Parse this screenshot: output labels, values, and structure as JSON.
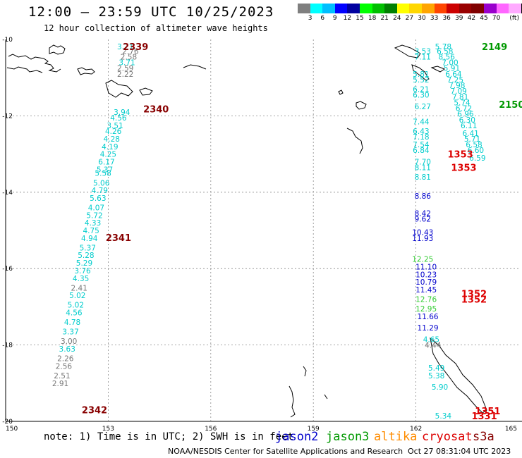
{
  "title": "12:00 – 23:59 UTC 10/25/2023",
  "subtitle": "12 hour collection of altimeter wave heights",
  "note": "note: 1) Time is in UTC; 2) SWH is in feet",
  "credit": "NOAA/NESDIS Center for Satellite Applications and Research",
  "timestamp": "Oct 27 08:31:04 UTC 2023",
  "colorbar": {
    "colors": [
      "#7f7f7f",
      "#00ffff",
      "#00bfff",
      "#0000ff",
      "#0000a0",
      "#00ff00",
      "#00c000",
      "#008000",
      "#ffff00",
      "#ffd700",
      "#ffa500",
      "#ff4500",
      "#cc0000",
      "#990000",
      "#800000",
      "#9900cc",
      "#ff66ff",
      "#ffaaff",
      "#000000"
    ],
    "labels": [
      "3",
      "6",
      "9",
      "12",
      "15",
      "18",
      "21",
      "24",
      "27",
      "30",
      "33",
      "36",
      "39",
      "42",
      "45",
      "70",
      "(ft)"
    ]
  },
  "satellites": [
    {
      "name": "jason2",
      "color": "#0000cc"
    },
    {
      "name": "jason3",
      "color": "#009900"
    },
    {
      "name": "altika",
      "color": "#ff8c00"
    },
    {
      "name": "cryosat",
      "color": "#dd0000"
    },
    {
      "name": "s3a",
      "color": "#880000"
    }
  ],
  "axes": {
    "x_ticks": [
      "150",
      "153",
      "156",
      "159",
      "162",
      "165"
    ],
    "y_ticks": [
      "-10",
      "-12",
      "-14",
      "-16",
      "-18",
      "-20"
    ],
    "lon_range": [
      150,
      165
    ],
    "lat_range": [
      -20,
      -10
    ]
  },
  "tracks": [
    {
      "pass_label": "2339",
      "label_color": "#880000",
      "label_lon": 153.8,
      "label_lat": -10.18
    },
    {
      "pass_label": "2340",
      "label_color": "#880000",
      "label_lon": 154.4,
      "label_lat": -11.82
    },
    {
      "pass_label": "2341",
      "label_color": "#880000",
      "label_lon": 153.3,
      "label_lat": -15.18
    },
    {
      "pass_label": "2342",
      "label_color": "#880000",
      "label_lon": 152.6,
      "label_lat": -19.7
    },
    {
      "pass_label": "2149",
      "label_color": "#009900",
      "label_lon": 164.3,
      "label_lat": -10.18
    },
    {
      "pass_label": "2150",
      "label_color": "#009900",
      "label_lon": 164.8,
      "label_lat": -11.7
    },
    {
      "pass_label": "1353",
      "label_color": "#dd0000",
      "label_lon": 163.3,
      "label_lat": -13.0
    },
    {
      "pass_label": "1353",
      "label_color": "#dd0000",
      "label_lon": 163.4,
      "label_lat": -13.35
    },
    {
      "pass_label": "1352",
      "label_color": "#dd0000",
      "label_lon": 163.7,
      "label_lat": -16.65
    },
    {
      "pass_label": "1352",
      "label_color": "#dd0000",
      "label_lon": 163.7,
      "label_lat": -16.8
    },
    {
      "pass_label": "1351",
      "label_color": "#dd0000",
      "label_lon": 164.1,
      "label_lat": -19.72
    },
    {
      "pass_label": "1331",
      "label_color": "#dd0000",
      "label_lon": 164.0,
      "label_lat": -19.85
    }
  ],
  "wave_heights": [
    {
      "v": "3.21",
      "c": "#00cccc",
      "lon": 153.5,
      "lat": -10.18
    },
    {
      "v": "2.76",
      "c": "#777777",
      "lon": 153.65,
      "lat": -10.3
    },
    {
      "v": "2.58",
      "c": "#777777",
      "lon": 153.6,
      "lat": -10.45
    },
    {
      "v": "3.71",
      "c": "#00cccc",
      "lon": 153.55,
      "lat": -10.6
    },
    {
      "v": "2.59",
      "c": "#777777",
      "lon": 153.5,
      "lat": -10.75
    },
    {
      "v": "2.22",
      "c": "#777777",
      "lon": 153.5,
      "lat": -10.9
    },
    {
      "v": "3.94",
      "c": "#00cccc",
      "lon": 153.4,
      "lat": -11.9
    },
    {
      "v": "4.56",
      "c": "#00cccc",
      "lon": 153.3,
      "lat": -12.05
    },
    {
      "v": "3.51",
      "c": "#00cccc",
      "lon": 153.2,
      "lat": -12.25
    },
    {
      "v": "4.26",
      "c": "#00cccc",
      "lon": 153.15,
      "lat": -12.4
    },
    {
      "v": "4.28",
      "c": "#00cccc",
      "lon": 153.1,
      "lat": -12.6
    },
    {
      "v": "4.19",
      "c": "#00cccc",
      "lon": 153.05,
      "lat": -12.8
    },
    {
      "v": "4.25",
      "c": "#00cccc",
      "lon": 153.0,
      "lat": -13.0
    },
    {
      "v": "6.17",
      "c": "#00cccc",
      "lon": 152.95,
      "lat": -13.2
    },
    {
      "v": "5.37",
      "c": "#00cccc",
      "lon": 152.9,
      "lat": -13.4
    },
    {
      "v": "5.58",
      "c": "#00cccc",
      "lon": 152.85,
      "lat": -13.5
    },
    {
      "v": "5.06",
      "c": "#00cccc",
      "lon": 152.8,
      "lat": -13.75
    },
    {
      "v": "4.79",
      "c": "#00cccc",
      "lon": 152.75,
      "lat": -13.95
    },
    {
      "v": "5.63",
      "c": "#00cccc",
      "lon": 152.7,
      "lat": -14.15
    },
    {
      "v": "4.07",
      "c": "#00cccc",
      "lon": 152.65,
      "lat": -14.4
    },
    {
      "v": "5.72",
      "c": "#00cccc",
      "lon": 152.6,
      "lat": -14.6
    },
    {
      "v": "4.33",
      "c": "#00cccc",
      "lon": 152.55,
      "lat": -14.8
    },
    {
      "v": "4.75",
      "c": "#00cccc",
      "lon": 152.5,
      "lat": -15.0
    },
    {
      "v": "4.94",
      "c": "#00cccc",
      "lon": 152.45,
      "lat": -15.2
    },
    {
      "v": "5.37",
      "c": "#00cccc",
      "lon": 152.4,
      "lat": -15.45
    },
    {
      "v": "5.28",
      "c": "#00cccc",
      "lon": 152.35,
      "lat": -15.65
    },
    {
      "v": "5.29",
      "c": "#00cccc",
      "lon": 152.3,
      "lat": -15.85
    },
    {
      "v": "3.76",
      "c": "#00cccc",
      "lon": 152.25,
      "lat": -16.05
    },
    {
      "v": "4.35",
      "c": "#00cccc",
      "lon": 152.2,
      "lat": -16.25
    },
    {
      "v": "2.41",
      "c": "#777777",
      "lon": 152.15,
      "lat": -16.5
    },
    {
      "v": "5.02",
      "c": "#00cccc",
      "lon": 152.1,
      "lat": -16.7
    },
    {
      "v": "5.02",
      "c": "#00cccc",
      "lon": 152.05,
      "lat": -16.95
    },
    {
      "v": "4.56",
      "c": "#00cccc",
      "lon": 152.0,
      "lat": -17.15
    },
    {
      "v": "4.78",
      "c": "#00cccc",
      "lon": 151.95,
      "lat": -17.4
    },
    {
      "v": "3.37",
      "c": "#00cccc",
      "lon": 151.9,
      "lat": -17.65
    },
    {
      "v": "3.00",
      "c": "#777777",
      "lon": 151.85,
      "lat": -17.9
    },
    {
      "v": "3.63",
      "c": "#00cccc",
      "lon": 151.8,
      "lat": -18.1
    },
    {
      "v": "2.26",
      "c": "#777777",
      "lon": 151.75,
      "lat": -18.35
    },
    {
      "v": "2.56",
      "c": "#777777",
      "lon": 151.7,
      "lat": -18.55
    },
    {
      "v": "2.51",
      "c": "#777777",
      "lon": 151.65,
      "lat": -18.8
    },
    {
      "v": "2.91",
      "c": "#777777",
      "lon": 151.6,
      "lat": -19.0
    },
    {
      "v": "5.78",
      "c": "#00cccc",
      "lon": 162.8,
      "lat": -10.18
    },
    {
      "v": "6.58",
      "c": "#00cccc",
      "lon": 162.85,
      "lat": -10.3
    },
    {
      "v": "8.56",
      "c": "#00cccc",
      "lon": 162.9,
      "lat": -10.45
    },
    {
      "v": "7.00",
      "c": "#00cccc",
      "lon": 163.0,
      "lat": -10.6
    },
    {
      "v": "5.91",
      "c": "#00cccc",
      "lon": 163.05,
      "lat": -10.75
    },
    {
      "v": "6.64",
      "c": "#00cccc",
      "lon": 163.1,
      "lat": -10.9
    },
    {
      "v": "7.25",
      "c": "#00cccc",
      "lon": 163.15,
      "lat": -11.05
    },
    {
      "v": "7.98",
      "c": "#00cccc",
      "lon": 163.2,
      "lat": -11.2
    },
    {
      "v": "7.09",
      "c": "#00cccc",
      "lon": 163.25,
      "lat": -11.35
    },
    {
      "v": "7.81",
      "c": "#00cccc",
      "lon": 163.3,
      "lat": -11.5
    },
    {
      "v": "5.74",
      "c": "#00cccc",
      "lon": 163.35,
      "lat": -11.65
    },
    {
      "v": "6.72",
      "c": "#00cccc",
      "lon": 163.4,
      "lat": -11.8
    },
    {
      "v": "6.96",
      "c": "#00cccc",
      "lon": 163.45,
      "lat": -11.95
    },
    {
      "v": "6.30",
      "c": "#00cccc",
      "lon": 163.5,
      "lat": -12.1
    },
    {
      "v": "6.11",
      "c": "#00cccc",
      "lon": 163.55,
      "lat": -12.25
    },
    {
      "v": "6.41",
      "c": "#00cccc",
      "lon": 163.6,
      "lat": -12.45
    },
    {
      "v": "5.71",
      "c": "#00cccc",
      "lon": 163.65,
      "lat": -12.6
    },
    {
      "v": "6.58",
      "c": "#00cccc",
      "lon": 163.7,
      "lat": -12.75
    },
    {
      "v": "6.60",
      "c": "#00cccc",
      "lon": 163.75,
      "lat": -12.9
    },
    {
      "v": "6.59",
      "c": "#00cccc",
      "lon": 163.8,
      "lat": -13.1
    },
    {
      "v": "3.53",
      "c": "#00cccc",
      "lon": 162.2,
      "lat": -10.3
    },
    {
      "v": "7.11",
      "c": "#00cccc",
      "lon": 162.2,
      "lat": -10.45
    },
    {
      "v": "5.81",
      "c": "#00cccc",
      "lon": 162.15,
      "lat": -10.9
    },
    {
      "v": "5.52",
      "c": "#00cccc",
      "lon": 162.15,
      "lat": -11.05
    },
    {
      "v": "6.21",
      "c": "#00cccc",
      "lon": 162.15,
      "lat": -11.3
    },
    {
      "v": "6.30",
      "c": "#00cccc",
      "lon": 162.15,
      "lat": -11.45
    },
    {
      "v": "6.27",
      "c": "#00cccc",
      "lon": 162.2,
      "lat": -11.75
    },
    {
      "v": "7.44",
      "c": "#00cccc",
      "lon": 162.15,
      "lat": -12.15
    },
    {
      "v": "6.43",
      "c": "#00cccc",
      "lon": 162.15,
      "lat": -12.4
    },
    {
      "v": "7.18",
      "c": "#00cccc",
      "lon": 162.15,
      "lat": -12.55
    },
    {
      "v": "7.54",
      "c": "#00cccc",
      "lon": 162.15,
      "lat": -12.75
    },
    {
      "v": "6.84",
      "c": "#00cccc",
      "lon": 162.15,
      "lat": -12.9
    },
    {
      "v": "7.70",
      "c": "#00cccc",
      "lon": 162.2,
      "lat": -13.2
    },
    {
      "v": "8.11",
      "c": "#00cccc",
      "lon": 162.2,
      "lat": -13.35
    },
    {
      "v": "8.81",
      "c": "#00cccc",
      "lon": 162.2,
      "lat": -13.6
    },
    {
      "v": "8.86",
      "c": "#0000cc",
      "lon": 162.2,
      "lat": -14.1
    },
    {
      "v": "8.42",
      "c": "#0000cc",
      "lon": 162.2,
      "lat": -14.55
    },
    {
      "v": "9.62",
      "c": "#0000cc",
      "lon": 162.2,
      "lat": -14.7
    },
    {
      "v": "10.43",
      "c": "#0000cc",
      "lon": 162.2,
      "lat": -15.05
    },
    {
      "v": "11.93",
      "c": "#0000cc",
      "lon": 162.2,
      "lat": -15.2
    },
    {
      "v": "12.25",
      "c": "#33cc33",
      "lon": 162.2,
      "lat": -15.75
    },
    {
      "v": "11.10",
      "c": "#0000cc",
      "lon": 162.3,
      "lat": -15.95
    },
    {
      "v": "10.23",
      "c": "#0000cc",
      "lon": 162.3,
      "lat": -16.15
    },
    {
      "v": "10.79",
      "c": "#0000cc",
      "lon": 162.3,
      "lat": -16.35
    },
    {
      "v": "11.45",
      "c": "#0000cc",
      "lon": 162.3,
      "lat": -16.55
    },
    {
      "v": "12.76",
      "c": "#33cc33",
      "lon": 162.3,
      "lat": -16.8
    },
    {
      "v": "12.95",
      "c": "#33cc33",
      "lon": 162.3,
      "lat": -17.05
    },
    {
      "v": "11.66",
      "c": "#0000cc",
      "lon": 162.35,
      "lat": -17.25
    },
    {
      "v": "11.29",
      "c": "#0000cc",
      "lon": 162.35,
      "lat": -17.55
    },
    {
      "v": "4.65",
      "c": "#00cccc",
      "lon": 162.45,
      "lat": -17.85
    },
    {
      "v": "4.44",
      "c": "#777777",
      "lon": 162.5,
      "lat": -18.0
    },
    {
      "v": "5.49",
      "c": "#00cccc",
      "lon": 162.6,
      "lat": -18.6
    },
    {
      "v": "5.38",
      "c": "#00cccc",
      "lon": 162.6,
      "lat": -18.8
    },
    {
      "v": "5.90",
      "c": "#00cccc",
      "lon": 162.7,
      "lat": -19.1
    },
    {
      "v": "5.34",
      "c": "#00cccc",
      "lon": 162.8,
      "lat": -19.85
    }
  ]
}
